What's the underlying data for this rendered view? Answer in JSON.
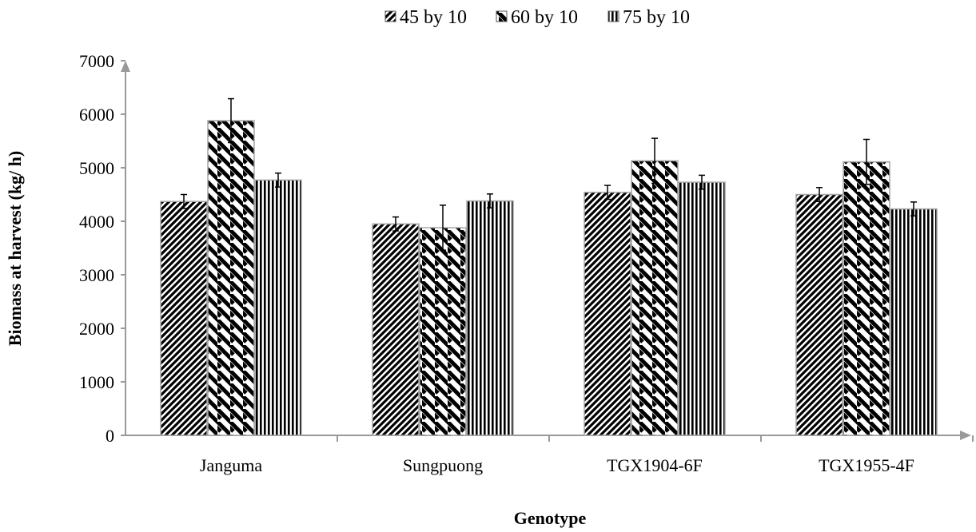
{
  "chart_data": {
    "type": "bar",
    "title": "",
    "xlabel": "Genotype",
    "ylabel": "Biomass at harvest (kg/ h)",
    "ylim": [
      0,
      7000
    ],
    "yticks": [
      0,
      1000,
      2000,
      3000,
      4000,
      5000,
      6000,
      7000
    ],
    "categories": [
      "Janguma",
      "Sungpuong",
      "TGX1904-6F",
      "TGX1955-4F"
    ],
    "legend_position": "top",
    "series": [
      {
        "name": "45 by 10",
        "pattern": "diagonal-forward",
        "values": [
          4370,
          3950,
          4540,
          4500
        ],
        "errors": [
          130,
          130,
          130,
          130
        ]
      },
      {
        "name": "60 by 10",
        "pattern": "diagonal-back",
        "values": [
          5880,
          3880,
          5130,
          5110
        ],
        "errors": [
          410,
          420,
          420,
          420
        ]
      },
      {
        "name": "75 by 10",
        "pattern": "vertical",
        "values": [
          4770,
          4380,
          4730,
          4230
        ],
        "errors": [
          130,
          130,
          130,
          130
        ]
      }
    ],
    "grid": false
  }
}
